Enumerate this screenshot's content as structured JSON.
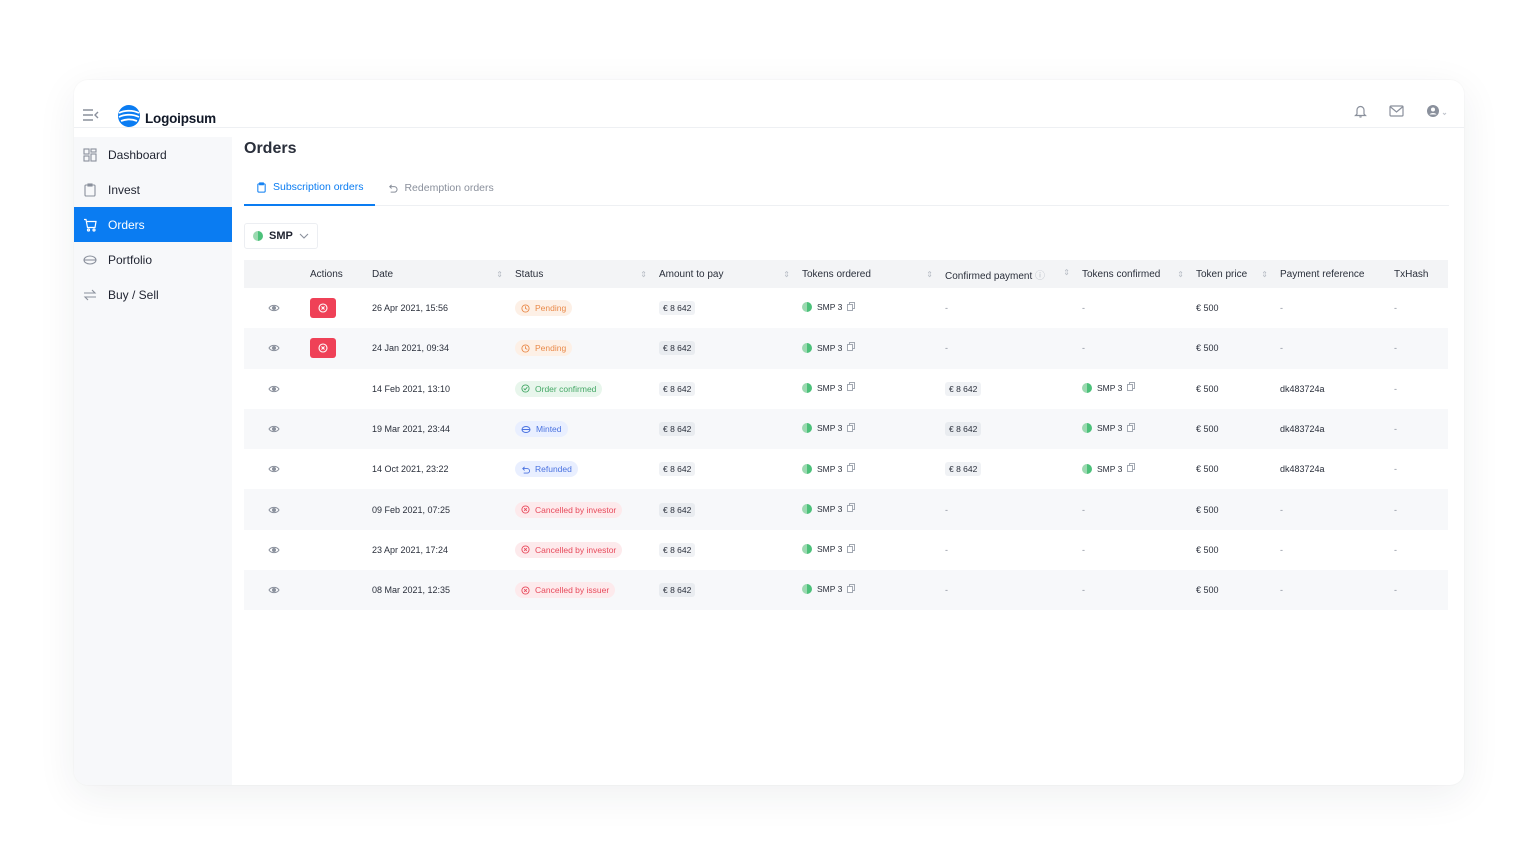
{
  "brand": {
    "name": "Logoipsum"
  },
  "sidebar": {
    "items": [
      {
        "label": "Dashboard",
        "icon": "grid-icon"
      },
      {
        "label": "Invest",
        "icon": "clipboard-icon"
      },
      {
        "label": "Orders",
        "icon": "cart-icon"
      },
      {
        "label": "Portfolio",
        "icon": "wallet-icon"
      },
      {
        "label": "Buy / Sell",
        "icon": "swap-icon"
      }
    ],
    "active": "Orders"
  },
  "header": {
    "title": "Orders"
  },
  "tabs": [
    {
      "label": "Subscription orders",
      "icon": "clipboard-icon"
    },
    {
      "label": "Redemption orders",
      "icon": "undo-icon"
    }
  ],
  "filter": {
    "value": "SMP"
  },
  "table": {
    "headers": [
      "Actions",
      "Date",
      "Status",
      "Amount to pay",
      "Tokens ordered",
      "Confirmed payment",
      "Tokens confirmed",
      "Token price",
      "Payment reference",
      "TxHash"
    ],
    "rows": [
      {
        "date": "26 Apr 2021, 15:56",
        "status": "Pending",
        "amount": "€ 8 642",
        "tokens": "SMP 3",
        "confirmed_payment": "-",
        "tokens_confirmed": "-",
        "price": "€ 500",
        "reference": "-",
        "txhash": "-"
      },
      {
        "date": "24 Jan 2021, 09:34",
        "status": "Pending",
        "amount": "€ 8 642",
        "tokens": "SMP 3",
        "confirmed_payment": "-",
        "tokens_confirmed": "-",
        "price": "€ 500",
        "reference": "-",
        "txhash": "-"
      },
      {
        "date": "14 Feb 2021, 13:10",
        "status": "Order confirmed",
        "amount": "€ 8 642",
        "tokens": "SMP 3",
        "confirmed_payment": "€ 8 642",
        "tokens_confirmed": "SMP 3",
        "price": "€ 500",
        "reference": "dk483724a",
        "txhash": "-"
      },
      {
        "date": "19 Mar 2021, 23:44",
        "status": "Minted",
        "amount": "€ 8 642",
        "tokens": "SMP 3",
        "confirmed_payment": "€ 8 642",
        "tokens_confirmed": "SMP 3",
        "price": "€ 500",
        "reference": "dk483724a",
        "txhash": "-"
      },
      {
        "date": "14 Oct 2021, 23:22",
        "status": "Refunded",
        "amount": "€ 8 642",
        "tokens": "SMP 3",
        "confirmed_payment": "€ 8 642",
        "tokens_confirmed": "SMP 3",
        "price": "€ 500",
        "reference": "dk483724a",
        "txhash": "-"
      },
      {
        "date": "09 Feb 2021, 07:25",
        "status": "Cancelled by investor",
        "amount": "€ 8 642",
        "tokens": "SMP 3",
        "confirmed_payment": "-",
        "tokens_confirmed": "-",
        "price": "€ 500",
        "reference": "-",
        "txhash": "-"
      },
      {
        "date": "23 Apr 2021, 17:24",
        "status": "Cancelled by investor",
        "amount": "€ 8 642",
        "tokens": "SMP 3",
        "confirmed_payment": "-",
        "tokens_confirmed": "-",
        "price": "€ 500",
        "reference": "-",
        "txhash": "-"
      },
      {
        "date": "08 Mar 2021, 12:35",
        "status": "Cancelled by issuer",
        "amount": "€ 8 642",
        "tokens": "SMP 3",
        "confirmed_payment": "-",
        "tokens_confirmed": "-",
        "price": "€ 500",
        "reference": "-",
        "txhash": "-"
      }
    ]
  },
  "colors": {
    "accent": "#0a7cf2",
    "danger": "#ef4157"
  }
}
